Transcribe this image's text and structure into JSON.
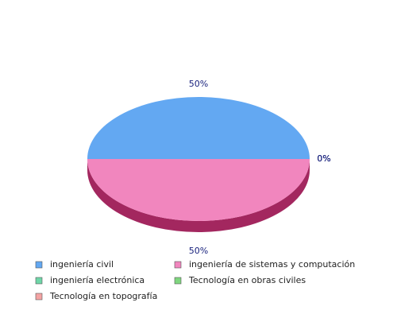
{
  "chart_data": {
    "type": "pie",
    "style": "3d",
    "title": "",
    "slices": [
      {
        "label": "ingeniería civil",
        "value": 50,
        "display": "50%",
        "color": "#63a8f2",
        "side_color": "#2f6cb8"
      },
      {
        "label": "ingeniería de sistemas y computación",
        "value": 50,
        "display": "50%",
        "color": "#f186be",
        "side_color": "#a3275f"
      },
      {
        "label": "ingeniería electrónica",
        "value": 0,
        "display": "0%",
        "color": "#6fd6a8",
        "side_color": "#3a9a70"
      },
      {
        "label": "Tecnología en obras civiles",
        "value": 0,
        "display": "0%",
        "color": "#7fd67f",
        "side_color": "#459945"
      },
      {
        "label": "Tecnología en topografía",
        "value": 0,
        "display": "0%",
        "color": "#f4a3a3",
        "side_color": "#b86363"
      }
    ],
    "legend": {
      "position": "bottom",
      "columns": 2
    }
  }
}
